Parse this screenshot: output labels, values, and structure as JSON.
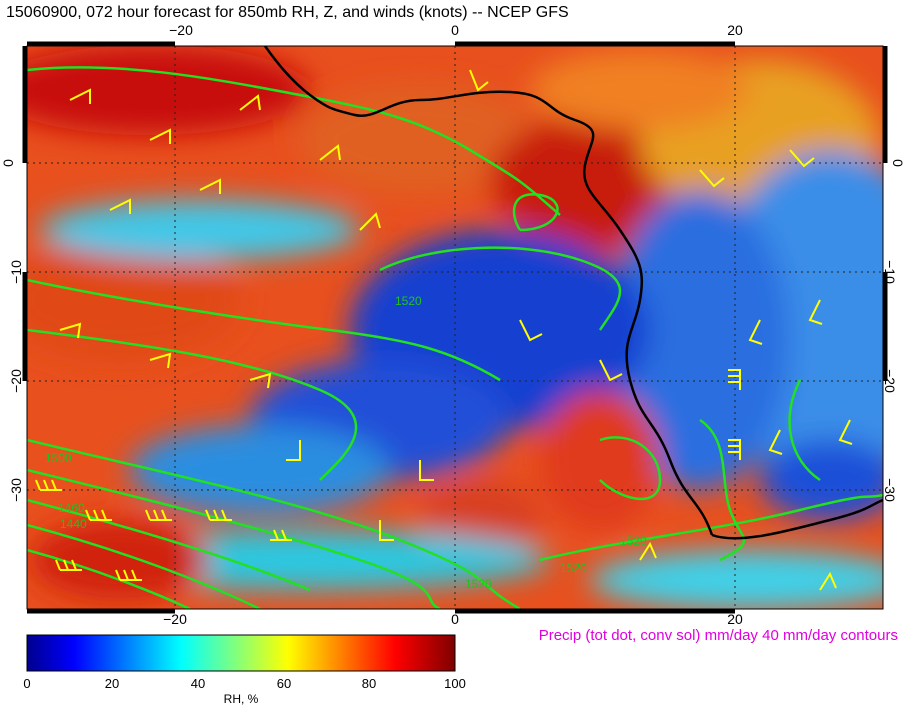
{
  "title": "15060900, 072 hour forecast for 850mb RH, Z, and winds (knots)  -- NCEP GFS",
  "precip_note": "Precip (tot dot, conv sol) mm/day 40 mm/day contours",
  "map": {
    "lon_ticks": [
      "−20",
      "0",
      "20"
    ],
    "lat_ticks": [
      "0",
      "−10",
      "−20",
      "−30"
    ],
    "contour_labels": [
      "1520",
      "1520",
      "1520",
      "1520",
      "1500",
      "1460",
      "1440"
    ],
    "colors": {
      "coastline": "#000000",
      "height_contours": "#22e022",
      "wind_barbs": "#ffff00",
      "grid": "#222222"
    }
  },
  "colorbar": {
    "title": "RH, %",
    "ticks": [
      "0",
      "20",
      "40",
      "60",
      "80",
      "100"
    ],
    "range": [
      0,
      100
    ],
    "colormap": "jet"
  }
}
